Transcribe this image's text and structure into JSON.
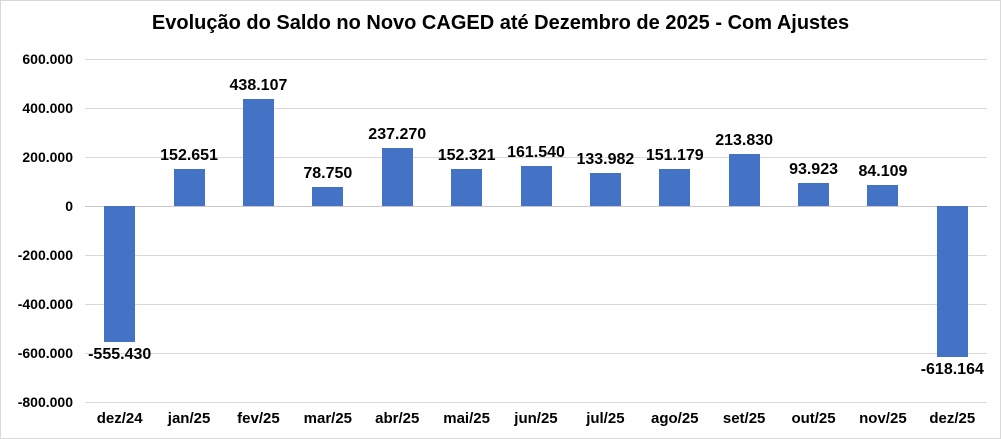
{
  "chart_data": {
    "type": "bar",
    "title": "Evolução do Saldo no Novo CAGED até Dezembro de 2025 - Com Ajustes",
    "xlabel": "",
    "ylabel": "",
    "categories": [
      "dez/24",
      "jan/25",
      "fev/25",
      "mar/25",
      "abr/25",
      "mai/25",
      "jun/25",
      "jul/25",
      "ago/25",
      "set/25",
      "out/25",
      "nov/25",
      "dez/25"
    ],
    "values": [
      -555430,
      152651,
      438107,
      78750,
      237270,
      152321,
      161540,
      133982,
      151179,
      213830,
      93923,
      84109,
      -618164
    ],
    "value_labels": [
      "-555.430",
      "152.651",
      "438.107",
      "78.750",
      "237.270",
      "152.321",
      "161.540",
      "133.982",
      "151.179",
      "213.830",
      "93.923",
      "84.109",
      "-618.164"
    ],
    "ylim": [
      -800000,
      600000
    ],
    "ytick_values": [
      600000,
      400000,
      200000,
      0,
      -200000,
      -400000,
      -600000,
      -800000
    ],
    "ytick_labels": [
      "600.000",
      "400.000",
      "200.000",
      "0",
      "-200.000",
      "-400.000",
      "-600.000",
      "-800.000"
    ],
    "grid": true,
    "legend": false,
    "colors": {
      "bar_fill": "#4472C4",
      "gridline": "#d9d9d9",
      "zero_line": "#c6c6c6",
      "text": "#000000",
      "background": "#ffffff",
      "frame_border": "#d9d9d9"
    }
  }
}
